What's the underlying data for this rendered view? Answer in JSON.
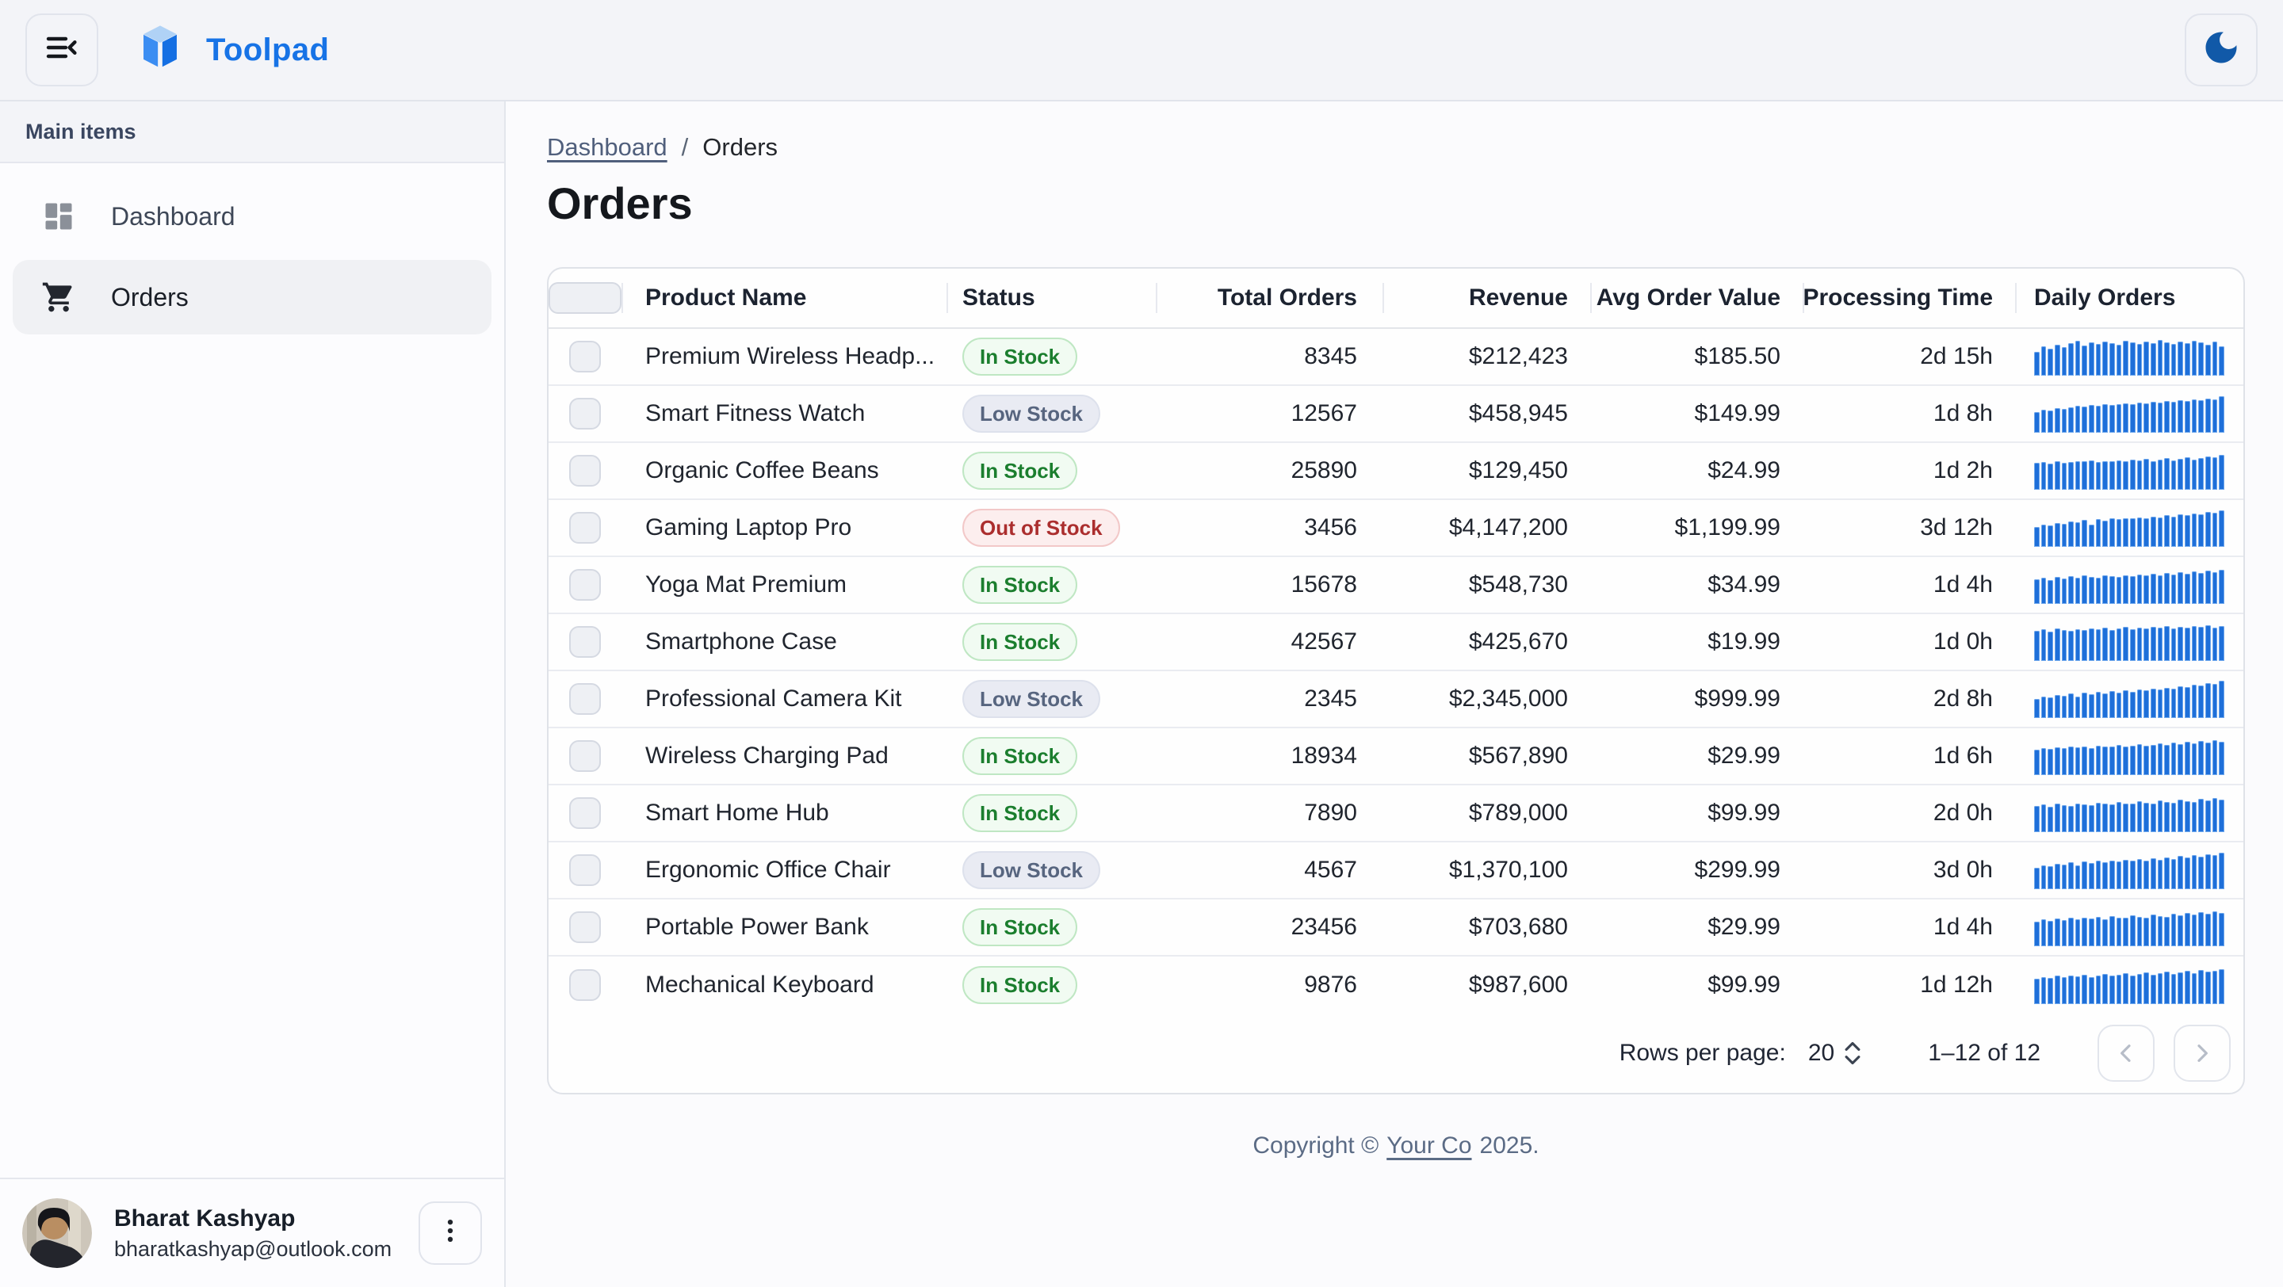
{
  "header": {
    "brand": "Toolpad"
  },
  "icons": {
    "menu": "menu-collapse-icon",
    "logo": "toolpad-logo-icon",
    "theme": "moon-icon",
    "nav": [
      "dashboard-icon",
      "cart-icon"
    ],
    "user_menu": "more-vert-icon",
    "pagination": [
      "chevron-left-icon",
      "chevron-right-icon"
    ]
  },
  "colors": {
    "accent": "#1773e6",
    "sparkline": "#1e6fd9",
    "status_in_stock": "#1b7e2e",
    "status_low_stock": "#57657f",
    "status_out_of_stock": "#ab2e2e",
    "appbar_bg": "#f3f4f8"
  },
  "sidebar": {
    "section_label": "Main items",
    "items": [
      {
        "label": "Dashboard",
        "active": false
      },
      {
        "label": "Orders",
        "active": true
      }
    ],
    "user": {
      "name": "Bharat Kashyap",
      "email": "bharatkashyap@outlook.com"
    }
  },
  "breadcrumb": {
    "link": "Dashboard",
    "separator": "/",
    "current": "Orders"
  },
  "page_title": "Orders",
  "table": {
    "columns": [
      "Product Name",
      "Status",
      "Total Orders",
      "Revenue",
      "Avg Order Value",
      "Processing Time",
      "Daily Orders"
    ],
    "rows": [
      {
        "product": "Premium Wireless Headp...",
        "status": "In Stock",
        "status_variant": "success",
        "total_orders": "8345",
        "revenue": "$212,423",
        "avg_order_value": "$185.50",
        "processing_time": "2d 15h",
        "daily_orders": [
          62,
          78,
          70,
          82,
          74,
          86,
          92,
          80,
          88,
          84,
          90,
          86,
          82,
          92,
          88,
          84,
          90,
          86,
          94,
          88,
          84,
          90,
          86,
          92,
          88,
          82,
          90,
          78
        ]
      },
      {
        "product": "Smart Fitness Watch",
        "status": "Low Stock",
        "status_variant": "neutral",
        "total_orders": "12567",
        "revenue": "$458,945",
        "avg_order_value": "$149.99",
        "processing_time": "1d 8h",
        "daily_orders": [
          55,
          60,
          58,
          64,
          62,
          66,
          70,
          68,
          72,
          70,
          74,
          72,
          76,
          78,
          74,
          80,
          78,
          82,
          80,
          84,
          82,
          86,
          84,
          88,
          86,
          90,
          88,
          95
        ]
      },
      {
        "product": "Organic Coffee Beans",
        "status": "In Stock",
        "status_variant": "success",
        "total_orders": "25890",
        "revenue": "$129,450",
        "avg_order_value": "$24.99",
        "processing_time": "1d 2h",
        "daily_orders": [
          70,
          72,
          68,
          74,
          70,
          72,
          76,
          74,
          78,
          72,
          76,
          74,
          78,
          76,
          80,
          78,
          82,
          76,
          80,
          84,
          78,
          82,
          86,
          80,
          84,
          88,
          86,
          92
        ]
      },
      {
        "product": "Gaming Laptop Pro",
        "status": "Out of Stock",
        "status_variant": "danger",
        "total_orders": "3456",
        "revenue": "$4,147,200",
        "avg_order_value": "$1,199.99",
        "processing_time": "3d 12h",
        "daily_orders": [
          52,
          58,
          56,
          62,
          60,
          66,
          64,
          70,
          58,
          72,
          68,
          74,
          72,
          76,
          74,
          78,
          76,
          80,
          78,
          84,
          80,
          86,
          84,
          88,
          86,
          92,
          90,
          96
        ]
      },
      {
        "product": "Yoga Mat Premium",
        "status": "In Stock",
        "status_variant": "success",
        "total_orders": "15678",
        "revenue": "$548,730",
        "avg_order_value": "$34.99",
        "processing_time": "1d 4h",
        "daily_orders": [
          64,
          68,
          62,
          70,
          66,
          72,
          68,
          74,
          70,
          68,
          74,
          72,
          70,
          76,
          72,
          78,
          74,
          80,
          76,
          82,
          78,
          84,
          80,
          86,
          82,
          88,
          84,
          90
        ]
      },
      {
        "product": "Smartphone Case",
        "status": "In Stock",
        "status_variant": "success",
        "total_orders": "42567",
        "revenue": "$425,670",
        "avg_order_value": "$19.99",
        "processing_time": "1d 0h",
        "daily_orders": [
          80,
          84,
          78,
          86,
          82,
          80,
          84,
          82,
          86,
          84,
          88,
          82,
          86,
          90,
          84,
          88,
          86,
          90,
          88,
          92,
          86,
          90,
          88,
          92,
          90,
          94,
          88,
          92
        ]
      },
      {
        "product": "Professional Camera Kit",
        "status": "Low Stock",
        "status_variant": "neutral",
        "total_orders": "2345",
        "revenue": "$2,345,000",
        "avg_order_value": "$999.99",
        "processing_time": "2d 8h",
        "daily_orders": [
          50,
          56,
          54,
          60,
          58,
          64,
          56,
          66,
          62,
          68,
          64,
          70,
          66,
          72,
          68,
          74,
          72,
          78,
          74,
          80,
          78,
          84,
          82,
          88,
          86,
          92,
          90,
          98
        ]
      },
      {
        "product": "Wireless Charging Pad",
        "status": "In Stock",
        "status_variant": "success",
        "total_orders": "18934",
        "revenue": "$567,890",
        "avg_order_value": "$29.99",
        "processing_time": "1d 6h",
        "daily_orders": [
          66,
          70,
          68,
          72,
          70,
          74,
          72,
          76,
          70,
          78,
          74,
          76,
          80,
          74,
          78,
          82,
          78,
          80,
          84,
          80,
          86,
          82,
          88,
          84,
          90,
          86,
          92,
          88
        ]
      },
      {
        "product": "Smart Home Hub",
        "status": "In Stock",
        "status_variant": "success",
        "total_orders": "7890",
        "revenue": "$789,000",
        "avg_order_value": "$99.99",
        "processing_time": "2d 0h",
        "daily_orders": [
          68,
          72,
          66,
          74,
          70,
          68,
          76,
          72,
          70,
          78,
          74,
          72,
          80,
          76,
          74,
          82,
          78,
          76,
          84,
          80,
          78,
          86,
          82,
          80,
          88,
          84,
          90,
          86
        ]
      },
      {
        "product": "Ergonomic Office Chair",
        "status": "Low Stock",
        "status_variant": "neutral",
        "total_orders": "4567",
        "revenue": "$1,370,100",
        "avg_order_value": "$299.99",
        "processing_time": "3d 0h",
        "daily_orders": [
          56,
          62,
          60,
          66,
          64,
          70,
          62,
          72,
          68,
          74,
          70,
          76,
          72,
          78,
          74,
          80,
          76,
          82,
          78,
          84,
          80,
          88,
          84,
          90,
          86,
          92,
          90,
          96
        ]
      },
      {
        "product": "Portable Power Bank",
        "status": "In Stock",
        "status_variant": "success",
        "total_orders": "23456",
        "revenue": "$703,680",
        "avg_order_value": "$29.99",
        "processing_time": "1d 4h",
        "daily_orders": [
          64,
          70,
          66,
          72,
          68,
          74,
          70,
          76,
          72,
          78,
          70,
          80,
          76,
          74,
          82,
          78,
          76,
          84,
          80,
          78,
          86,
          82,
          88,
          84,
          90,
          86,
          92,
          88
        ]
      },
      {
        "product": "Mechanical Keyboard",
        "status": "In Stock",
        "status_variant": "success",
        "total_orders": "9876",
        "revenue": "$987,600",
        "avg_order_value": "$99.99",
        "processing_time": "1d 12h",
        "daily_orders": [
          66,
          70,
          68,
          74,
          70,
          76,
          72,
          78,
          70,
          76,
          80,
          74,
          78,
          82,
          76,
          80,
          84,
          78,
          82,
          86,
          80,
          84,
          88,
          82,
          90,
          86,
          88,
          92
        ]
      }
    ],
    "pagination": {
      "rows_per_page_label": "Rows per page:",
      "rows_per_page": "20",
      "range": "1–12 of 12"
    }
  },
  "footer": {
    "prefix": "Copyright ©",
    "link": "Your Co",
    "suffix": "2025."
  }
}
